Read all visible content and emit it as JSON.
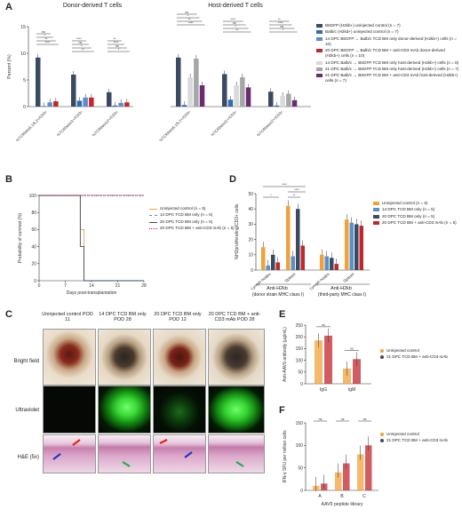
{
  "colors": {
    "uninjected": "#f0a13a",
    "tcd14": "#5a8fc9",
    "tcd20": "#3b4a63",
    "tcd20_anti": "#c1272d",
    "b6_uninj": "#3b4a63",
    "balbc_uninj": "#2e6db4",
    "dd14": "#5a8fc9",
    "dd20_anti": "#c1272d",
    "hd14": "#d9d9d9",
    "hd21": "#a6a6a6",
    "hd21_anti": "#6b2c6f"
  },
  "panelA": {
    "label": "A",
    "donor_title": "Donor-derived T cells",
    "host_title": "Host-derived T cells",
    "legend": [
      "B6GFP (H2kb+) uninjected control (n = 7)",
      "Balb/c (H2kd+) uninjected control (n = 7)",
      "14 DPC B6GFP → Balb/c TCD BM only donor-derived (H2kb+) cells (n = 10)",
      "20 DPC B6GFP → Balb/c TCD BM + anti-CD3 mAb donor-derived (H2kb+) cells (n = 10)",
      "14 DPC Balb/c → B6GFP TCD BM only host-derived (H2kb+) cells (n = 8)",
      "21 DPC Balb/c → B6GFP TCD BM only host-derived (H2kb+) cells (n = 7)",
      "21 DPC Balb/c → B6GFP TCD BM + anti-CD3 mAb host-derived (H2kb+) cells (n = 7)"
    ]
  },
  "panelB": {
    "label": "B",
    "legend": [
      "Uninjected control (n = 5)",
      "14 DPC TCD BM only (n = 5)",
      "20 DPC TCD BM only (n = 5)",
      "20 DPC TCD BM + anti-CD3 mAb (n = 5)"
    ]
  },
  "panelC": {
    "label": "C",
    "columns": [
      "Uninjected control POD 11",
      "14 DPC TCD BM only POD 28",
      "20 DPC TCD BM only POD 12",
      "20 DPC TCD BM + anti-CD3 mAb POD 28"
    ],
    "rows": [
      "Bright field",
      "Ultraviolet",
      "H&E (5x)"
    ]
  },
  "panelD": {
    "label": "D",
    "legend": [
      "Uninjected control (n = 5)",
      "14 DPC TCD BM only (n = 5)",
      "20 DPC TCD BM only (n = 5)",
      "20 DPC TCD BM + anti-CD3 mAb (n = 5)"
    ],
    "group1": "Anti-H2kb",
    "group1_sub": "(donor strain MHC class I)",
    "group2": "Anti-H2kb",
    "group2_sub": "(third-party MHC class I)"
  },
  "panelE": {
    "label": "E",
    "legend": [
      "Uninjected control",
      "21 DPC TCD BM + anti-CD3 mAb"
    ]
  },
  "panelF": {
    "label": "F",
    "legend": [
      "Uninjected control",
      "21 DPC TCD BM + anti-CD3 mAb"
    ]
  },
  "chart_data": [
    {
      "id": "A",
      "type": "bar",
      "ylabel": "Percent (%)",
      "ylim": [
        0,
        15
      ],
      "yticks": [
        0,
        5,
        10,
        15
      ],
      "donor_categories": [
        "%TCRbeta5.1/5.2+/CD3+",
        "%TCRbeta11+/CD3+",
        "%TCRbeta12+/CD3+"
      ],
      "host_categories": [
        "%TCRbeta5.1/5.2+/CD3+",
        "%TCRbeta11+/CD3+",
        "%TCRbeta12+/CD3+"
      ],
      "donor_series": [
        {
          "key": "b6_uninj",
          "values": [
            9.2,
            6.0,
            2.7
          ]
        },
        {
          "key": "balbc_uninj",
          "values": [
            0.1,
            1.1,
            0.2
          ]
        },
        {
          "key": "dd14",
          "values": [
            0.8,
            1.7,
            0.7
          ]
        },
        {
          "key": "dd20_anti",
          "values": [
            1.0,
            1.7,
            0.8
          ]
        }
      ],
      "host_series": [
        {
          "key": "b6_uninj",
          "values": [
            9.2,
            6.1,
            2.8
          ]
        },
        {
          "key": "balbc_uninj",
          "values": [
            0.3,
            1.3,
            0.2
          ]
        },
        {
          "key": "hd14",
          "values": [
            5.5,
            4.0,
            2.0
          ]
        },
        {
          "key": "hd21",
          "values": [
            9.0,
            5.5,
            2.4
          ]
        },
        {
          "key": "hd21_anti",
          "values": [
            4.0,
            3.6,
            1.2
          ]
        }
      ],
      "sig_labels": [
        "****",
        "**",
        "*",
        "ns"
      ]
    },
    {
      "id": "B",
      "type": "line",
      "xlabel": "Days post-transplantation",
      "ylabel": "Probability of survival (%)",
      "xlim": [
        0,
        28
      ],
      "xticks": [
        0,
        7,
        14,
        21,
        28
      ],
      "ylim": [
        0,
        100
      ],
      "yticks": [
        0,
        20,
        40,
        60,
        80,
        100
      ],
      "series": [
        {
          "key": "uninjected",
          "steps": [
            [
              0,
              100
            ],
            [
              11,
              100
            ],
            [
              11,
              60
            ],
            [
              12,
              60
            ],
            [
              12,
              0
            ],
            [
              28,
              0
            ]
          ]
        },
        {
          "key": "tcd14",
          "steps": [
            [
              0,
              100
            ],
            [
              28,
              100
            ]
          ]
        },
        {
          "key": "tcd20",
          "steps": [
            [
              0,
              100
            ],
            [
              11,
              100
            ],
            [
              11,
              40
            ],
            [
              12,
              40
            ],
            [
              12,
              0
            ],
            [
              28,
              0
            ]
          ]
        },
        {
          "key": "tcd20_anti",
          "steps": [
            [
              0,
              100
            ],
            [
              28,
              100
            ]
          ]
        }
      ]
    },
    {
      "id": "D",
      "type": "bar",
      "ylabel": "%H2proliferating/CD3+ cells",
      "ylim": [
        0,
        50
      ],
      "yticks": [
        0,
        10,
        20,
        30,
        40,
        50
      ],
      "categories": [
        "Lymph nodes",
        "Spleen",
        "Lymph nodes",
        "Spleen"
      ],
      "series": [
        {
          "key": "uninjected",
          "values": [
            15,
            42,
            10,
            33
          ]
        },
        {
          "key": "tcd14",
          "values": [
            3,
            9,
            9,
            31
          ]
        },
        {
          "key": "tcd20",
          "values": [
            10,
            40,
            8,
            30
          ]
        },
        {
          "key": "tcd20_anti",
          "values": [
            5,
            16,
            4,
            29
          ]
        }
      ],
      "sig_labels": [
        "****",
        "*",
        "****",
        "****",
        "**",
        "ns"
      ]
    },
    {
      "id": "E",
      "type": "bar",
      "ylabel": "Anti-AAV9 antibody (µg/mL)",
      "ylim": [
        0,
        250
      ],
      "yticks": [
        0,
        50,
        100,
        150,
        200,
        250
      ],
      "categories": [
        "IgG",
        "IgM"
      ],
      "series": [
        {
          "key": "uninjected",
          "values": [
            185,
            65
          ]
        },
        {
          "key": "tcd20_anti",
          "values": [
            205,
            105
          ]
        }
      ],
      "sig_labels": [
        "ns",
        "ns"
      ]
    },
    {
      "id": "F",
      "type": "bar",
      "xlabel": "AAV9 peptide library",
      "ylabel": "IFN-γ SFU per million cells",
      "ylim": [
        0,
        150
      ],
      "yticks": [
        0,
        50,
        100,
        150
      ],
      "categories": [
        "A",
        "B",
        "C"
      ],
      "series": [
        {
          "key": "uninjected",
          "values": [
            10,
            40,
            80
          ]
        },
        {
          "key": "tcd20_anti",
          "values": [
            15,
            60,
            100
          ]
        }
      ],
      "sig_labels": [
        "ns",
        "ns",
        "ns"
      ]
    }
  ]
}
